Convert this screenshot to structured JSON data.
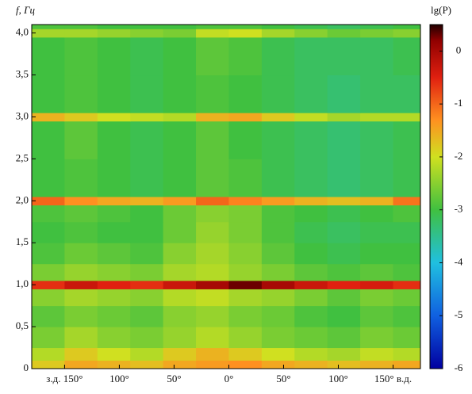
{
  "chart_data": {
    "type": "heatmap",
    "y_label": "f, Гц",
    "colorbar_label": "lg(P)",
    "xlim": [
      -180,
      175
    ],
    "xticks": [
      {
        "value": -150,
        "label": "з.д. 150°"
      },
      {
        "value": -100,
        "label": "100°"
      },
      {
        "value": -50,
        "label": "50°"
      },
      {
        "value": 0,
        "label": "0°"
      },
      {
        "value": 50,
        "label": "50°"
      },
      {
        "value": 100,
        "label": "100°"
      },
      {
        "value": 150,
        "label": "150° в.д."
      }
    ],
    "ylim": [
      0,
      4.1
    ],
    "yticks": [
      0,
      {
        "value": 0.5,
        "label": "0,5"
      },
      {
        "value": 1,
        "label": "1,0"
      },
      {
        "value": 1.5,
        "label": "1,5"
      },
      {
        "value": 2,
        "label": "2,0"
      },
      {
        "value": 2.5,
        "label": "2,5"
      },
      {
        "value": 3,
        "label": "3,0"
      },
      {
        "value": 3.5,
        "label": "3,5"
      },
      {
        "value": 4,
        "label": "4,0"
      }
    ],
    "clim": [
      -6,
      0.5
    ],
    "cticks": [
      0,
      -1,
      -2,
      -3,
      -4,
      -5,
      -6
    ],
    "colorscale": [
      [
        -6,
        "#0000a0"
      ],
      [
        -5,
        "#1060e0"
      ],
      [
        -4,
        "#20c0e0"
      ],
      [
        -3,
        "#40c040"
      ],
      [
        -2,
        "#d0e020"
      ],
      [
        -1.3,
        "#ff9020"
      ],
      [
        -0.5,
        "#e02010"
      ],
      [
        0.2,
        "#900000"
      ],
      [
        0.5,
        "#200000"
      ]
    ],
    "xbins": [
      -180,
      -150,
      -120,
      -90,
      -60,
      -30,
      0,
      30,
      60,
      90,
      120,
      150,
      175
    ],
    "ybins": [
      0,
      0.1,
      0.25,
      0.5,
      0.75,
      0.95,
      1.05,
      1.25,
      1.5,
      1.75,
      1.95,
      2.05,
      2.5,
      2.95,
      3.05,
      3.5,
      3.95,
      4.05,
      4.1
    ],
    "z": [
      [
        -1.8,
        -1.5,
        -1.6,
        -1.7,
        -1.5,
        -1.4,
        -1.3,
        -1.5,
        -1.6,
        -1.7,
        -1.6,
        -1.5
      ],
      [
        -2.2,
        -1.8,
        -2,
        -2.2,
        -1.8,
        -1.6,
        -1.8,
        -2,
        -2.2,
        -2.3,
        -2.1,
        -2.2
      ],
      [
        -2.6,
        -2.3,
        -2.5,
        -2.6,
        -2.4,
        -2.2,
        -2.4,
        -2.6,
        -2.7,
        -2.8,
        -2.6,
        -2.7
      ],
      [
        -2.8,
        -2.6,
        -2.7,
        -2.8,
        -2.5,
        -2.4,
        -2.6,
        -2.7,
        -2.9,
        -3,
        -2.8,
        -2.9
      ],
      [
        -2.5,
        -2.3,
        -2.4,
        -2.5,
        -2.2,
        -2.1,
        -2.3,
        -2.4,
        -2.6,
        -2.8,
        -2.6,
        -2.7
      ],
      [
        -0.6,
        -0.3,
        -0.5,
        -0.6,
        -0.3,
        0,
        0.3,
        0,
        -0.3,
        -0.5,
        -0.4,
        -0.6
      ],
      [
        -2.6,
        -2.4,
        -2.5,
        -2.6,
        -2.3,
        -2.2,
        -2.4,
        -2.6,
        -2.8,
        -2.9,
        -2.8,
        -2.9
      ],
      [
        -2.9,
        -2.7,
        -2.8,
        -2.9,
        -2.5,
        -2.3,
        -2.5,
        -2.8,
        -3,
        -3.1,
        -3,
        -3
      ],
      [
        -3,
        -2.9,
        -3,
        -3,
        -2.7,
        -2.4,
        -2.6,
        -2.9,
        -3.1,
        -3.2,
        -3.1,
        -3.1
      ],
      [
        -2.9,
        -2.8,
        -2.9,
        -3,
        -2.7,
        -2.5,
        -2.6,
        -2.9,
        -3,
        -3.1,
        -3,
        -2.9
      ],
      [
        -1,
        -1.3,
        -1.5,
        -1.6,
        -1.4,
        -1,
        -1.2,
        -1.4,
        -1.6,
        -1.7,
        -1.6,
        -1.1
      ],
      [
        -3,
        -2.9,
        -3,
        -3.1,
        -3,
        -2.8,
        -2.9,
        -3.1,
        -3.2,
        -3.3,
        -3.2,
        -3.1
      ],
      [
        -3,
        -2.8,
        -3,
        -3.1,
        -3,
        -2.8,
        -3,
        -3.1,
        -3.2,
        -3.3,
        -3.2,
        -3.1
      ],
      [
        -1.6,
        -1.8,
        -2,
        -2.1,
        -2.2,
        -1.6,
        -1.5,
        -1.8,
        -2.1,
        -2.3,
        -2.2,
        -2.2
      ],
      [
        -3,
        -2.9,
        -3,
        -3.1,
        -3,
        -2.9,
        -3,
        -3.1,
        -3.2,
        -3.3,
        -3.2,
        -3.2
      ],
      [
        -3,
        -2.9,
        -3,
        -3.1,
        -3,
        -2.8,
        -2.9,
        -3.1,
        -3.2,
        -3.2,
        -3.2,
        -3.1
      ],
      [
        -2.3,
        -2.3,
        -2.4,
        -2.5,
        -2.6,
        -2.1,
        -2,
        -2.3,
        -2.5,
        -2.7,
        -2.6,
        -2.5
      ],
      [
        -2.9,
        -2.9,
        -3,
        -3,
        -3,
        -2.9,
        -2.9,
        -3,
        -3.1,
        -3.2,
        -3.1,
        -3
      ]
    ]
  }
}
